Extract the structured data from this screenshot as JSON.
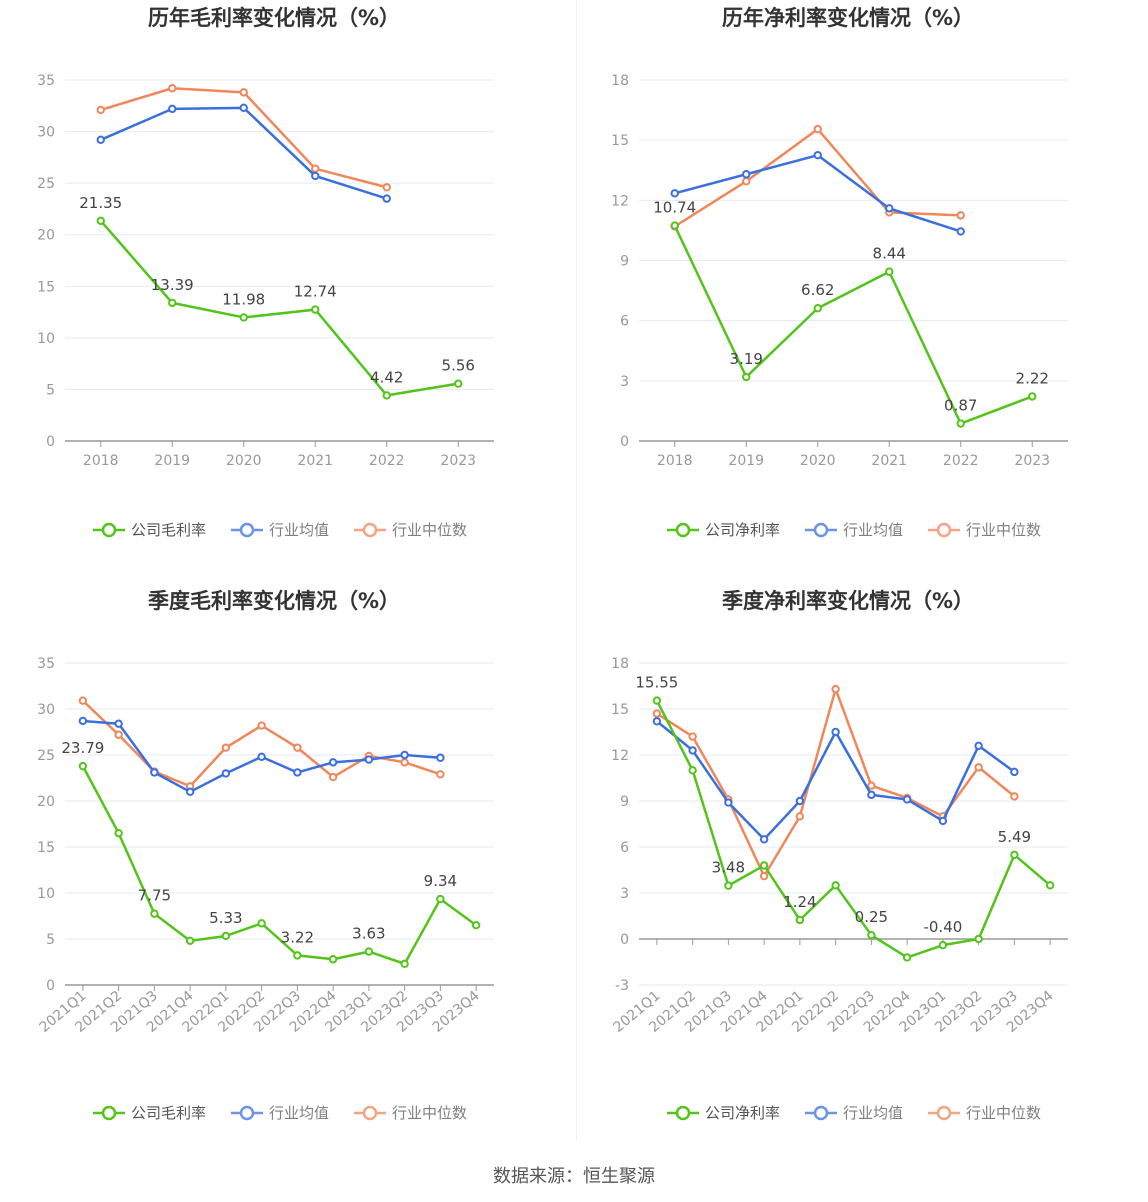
{
  "source_text": "数据来源：恒生聚源",
  "colors": {
    "company": "#52c41a",
    "avg": "#3b6fe0",
    "median": "#f0875a",
    "axis": "#999999",
    "grid": "#e6e9f0",
    "text": "#444444"
  },
  "chart_data": [
    {
      "id": "annual-gross",
      "type": "line",
      "title": "历年毛利率变化情况（%）",
      "categories": [
        "2018",
        "2019",
        "2020",
        "2021",
        "2022",
        "2023"
      ],
      "ylim": [
        0,
        35
      ],
      "yticks": [
        "0",
        "5",
        "10",
        "15",
        "20",
        "25",
        "30",
        "35"
      ],
      "grid": true,
      "legend_position": "bottom",
      "series": [
        {
          "name": "公司毛利率",
          "role": "company",
          "values": [
            21.35,
            13.39,
            11.98,
            12.74,
            4.42,
            5.56
          ],
          "labels": [
            "21.35",
            "13.39",
            "11.98",
            "12.74",
            "4.42",
            "5.56"
          ]
        },
        {
          "name": "行业均值",
          "role": "avg",
          "values": [
            29.2,
            32.2,
            32.3,
            25.7,
            23.5,
            null
          ]
        },
        {
          "name": "行业中位数",
          "role": "median",
          "values": [
            32.1,
            34.2,
            33.8,
            26.4,
            24.6,
            null
          ]
        }
      ]
    },
    {
      "id": "annual-net",
      "type": "line",
      "title": "历年净利率变化情况（%）",
      "categories": [
        "2018",
        "2019",
        "2020",
        "2021",
        "2022",
        "2023"
      ],
      "ylim": [
        0,
        18
      ],
      "yticks": [
        "0",
        "3",
        "6",
        "9",
        "12",
        "15",
        "18"
      ],
      "grid": true,
      "legend_position": "bottom",
      "series": [
        {
          "name": "公司净利率",
          "role": "company",
          "values": [
            10.74,
            3.19,
            6.62,
            8.44,
            0.87,
            2.22
          ],
          "labels": [
            "10.74",
            "3.19",
            "6.62",
            "8.44",
            "0.87",
            "2.22"
          ]
        },
        {
          "name": "行业均值",
          "role": "avg",
          "values": [
            12.35,
            13.3,
            14.25,
            11.6,
            10.45,
            null
          ]
        },
        {
          "name": "行业中位数",
          "role": "median",
          "values": [
            10.7,
            12.95,
            15.55,
            11.4,
            11.25,
            null
          ]
        }
      ]
    },
    {
      "id": "quarterly-gross",
      "type": "line",
      "title": "季度毛利率变化情况（%）",
      "categories": [
        "2021Q1",
        "2021Q2",
        "2021Q3",
        "2021Q4",
        "2022Q1",
        "2022Q2",
        "2022Q3",
        "2022Q4",
        "2023Q1",
        "2023Q2",
        "2023Q3",
        "2023Q4"
      ],
      "ylim": [
        0,
        35
      ],
      "yticks": [
        "0",
        "5",
        "10",
        "15",
        "20",
        "25",
        "30",
        "35"
      ],
      "grid": true,
      "legend_position": "bottom",
      "series": [
        {
          "name": "公司毛利率",
          "role": "company",
          "values": [
            23.79,
            16.5,
            7.75,
            4.8,
            5.33,
            6.7,
            3.22,
            2.8,
            3.63,
            2.3,
            9.34,
            6.5
          ],
          "labels": [
            "23.79",
            "",
            "7.75",
            "",
            "5.33",
            "",
            "3.22",
            "",
            "3.63",
            "",
            "9.34",
            ""
          ]
        },
        {
          "name": "行业均值",
          "role": "avg",
          "values": [
            28.7,
            28.4,
            23.1,
            21.0,
            23.0,
            24.8,
            23.1,
            24.2,
            24.5,
            25.0,
            24.7,
            null
          ]
        },
        {
          "name": "行业中位数",
          "role": "median",
          "values": [
            30.9,
            27.2,
            23.2,
            21.6,
            25.8,
            28.2,
            25.8,
            22.6,
            24.9,
            24.2,
            22.9,
            null
          ]
        }
      ]
    },
    {
      "id": "quarterly-net",
      "type": "line",
      "title": "季度净利率变化情况（%）",
      "categories": [
        "2021Q1",
        "2021Q2",
        "2021Q3",
        "2021Q4",
        "2022Q1",
        "2022Q2",
        "2022Q3",
        "2022Q4",
        "2023Q1",
        "2023Q2",
        "2023Q3",
        "2023Q4"
      ],
      "ylim": [
        -3,
        18
      ],
      "yticks": [
        "-3",
        "0",
        "3",
        "6",
        "9",
        "12",
        "15",
        "18"
      ],
      "grid": true,
      "legend_position": "bottom",
      "series": [
        {
          "name": "公司净利率",
          "role": "company",
          "values": [
            15.55,
            11.0,
            3.48,
            4.8,
            1.24,
            3.5,
            0.25,
            -1.2,
            -0.4,
            0.0,
            5.49,
            3.5
          ],
          "labels": [
            "15.55",
            "",
            "3.48",
            "",
            "1.24",
            "",
            "0.25",
            "",
            "-0.40",
            "",
            "5.49",
            ""
          ]
        },
        {
          "name": "行业均值",
          "role": "avg",
          "values": [
            14.2,
            12.3,
            8.9,
            6.5,
            9.0,
            13.5,
            9.4,
            9.1,
            7.7,
            12.6,
            10.9,
            null
          ]
        },
        {
          "name": "行业中位数",
          "role": "median",
          "values": [
            14.7,
            13.2,
            9.1,
            4.1,
            8.0,
            16.3,
            10.0,
            9.2,
            8.0,
            11.2,
            9.3,
            null
          ]
        }
      ]
    }
  ]
}
